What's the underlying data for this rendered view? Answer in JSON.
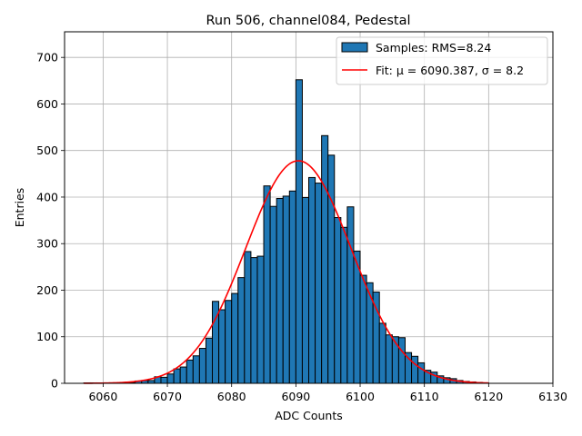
{
  "chart_data": {
    "type": "bar",
    "title": "Run 506, channel084, Pedestal",
    "xlabel": "ADC Counts",
    "ylabel": "Entries",
    "xlim": [
      6054,
      6130
    ],
    "ylim": [
      0,
      755
    ],
    "xticks": [
      6060,
      6070,
      6080,
      6090,
      6100,
      6110,
      6120,
      6130
    ],
    "yticks": [
      0,
      100,
      200,
      300,
      400,
      500,
      600,
      700
    ],
    "grid": true,
    "legend_position": "top-right",
    "bin_start": 6057,
    "bin_width": 1,
    "counts": [
      1,
      1,
      1,
      1,
      1,
      1,
      1,
      2,
      5,
      6,
      6,
      14,
      13,
      20,
      31,
      35,
      50,
      59,
      75,
      97,
      176,
      158,
      178,
      193,
      227,
      283,
      270,
      273,
      424,
      380,
      397,
      402,
      413,
      652,
      399,
      442,
      430,
      532,
      490,
      356,
      335,
      379,
      284,
      232,
      216,
      196,
      129,
      104,
      100,
      98,
      66,
      58,
      44,
      28,
      24,
      16,
      12,
      10,
      6,
      4,
      3,
      2,
      1
    ],
    "histogram_series": {
      "name": "Samples: RMS=8.24",
      "color": "#1f77b4",
      "edge_color": "#000000"
    },
    "fit_series": {
      "name": "Fit: μ = 6090.387, σ = 8.2",
      "type": "line",
      "color": "#ff0000",
      "mu": 6090.387,
      "sigma": 8.2,
      "amplitude": 478,
      "x_range": [
        6057,
        6120
      ]
    }
  }
}
